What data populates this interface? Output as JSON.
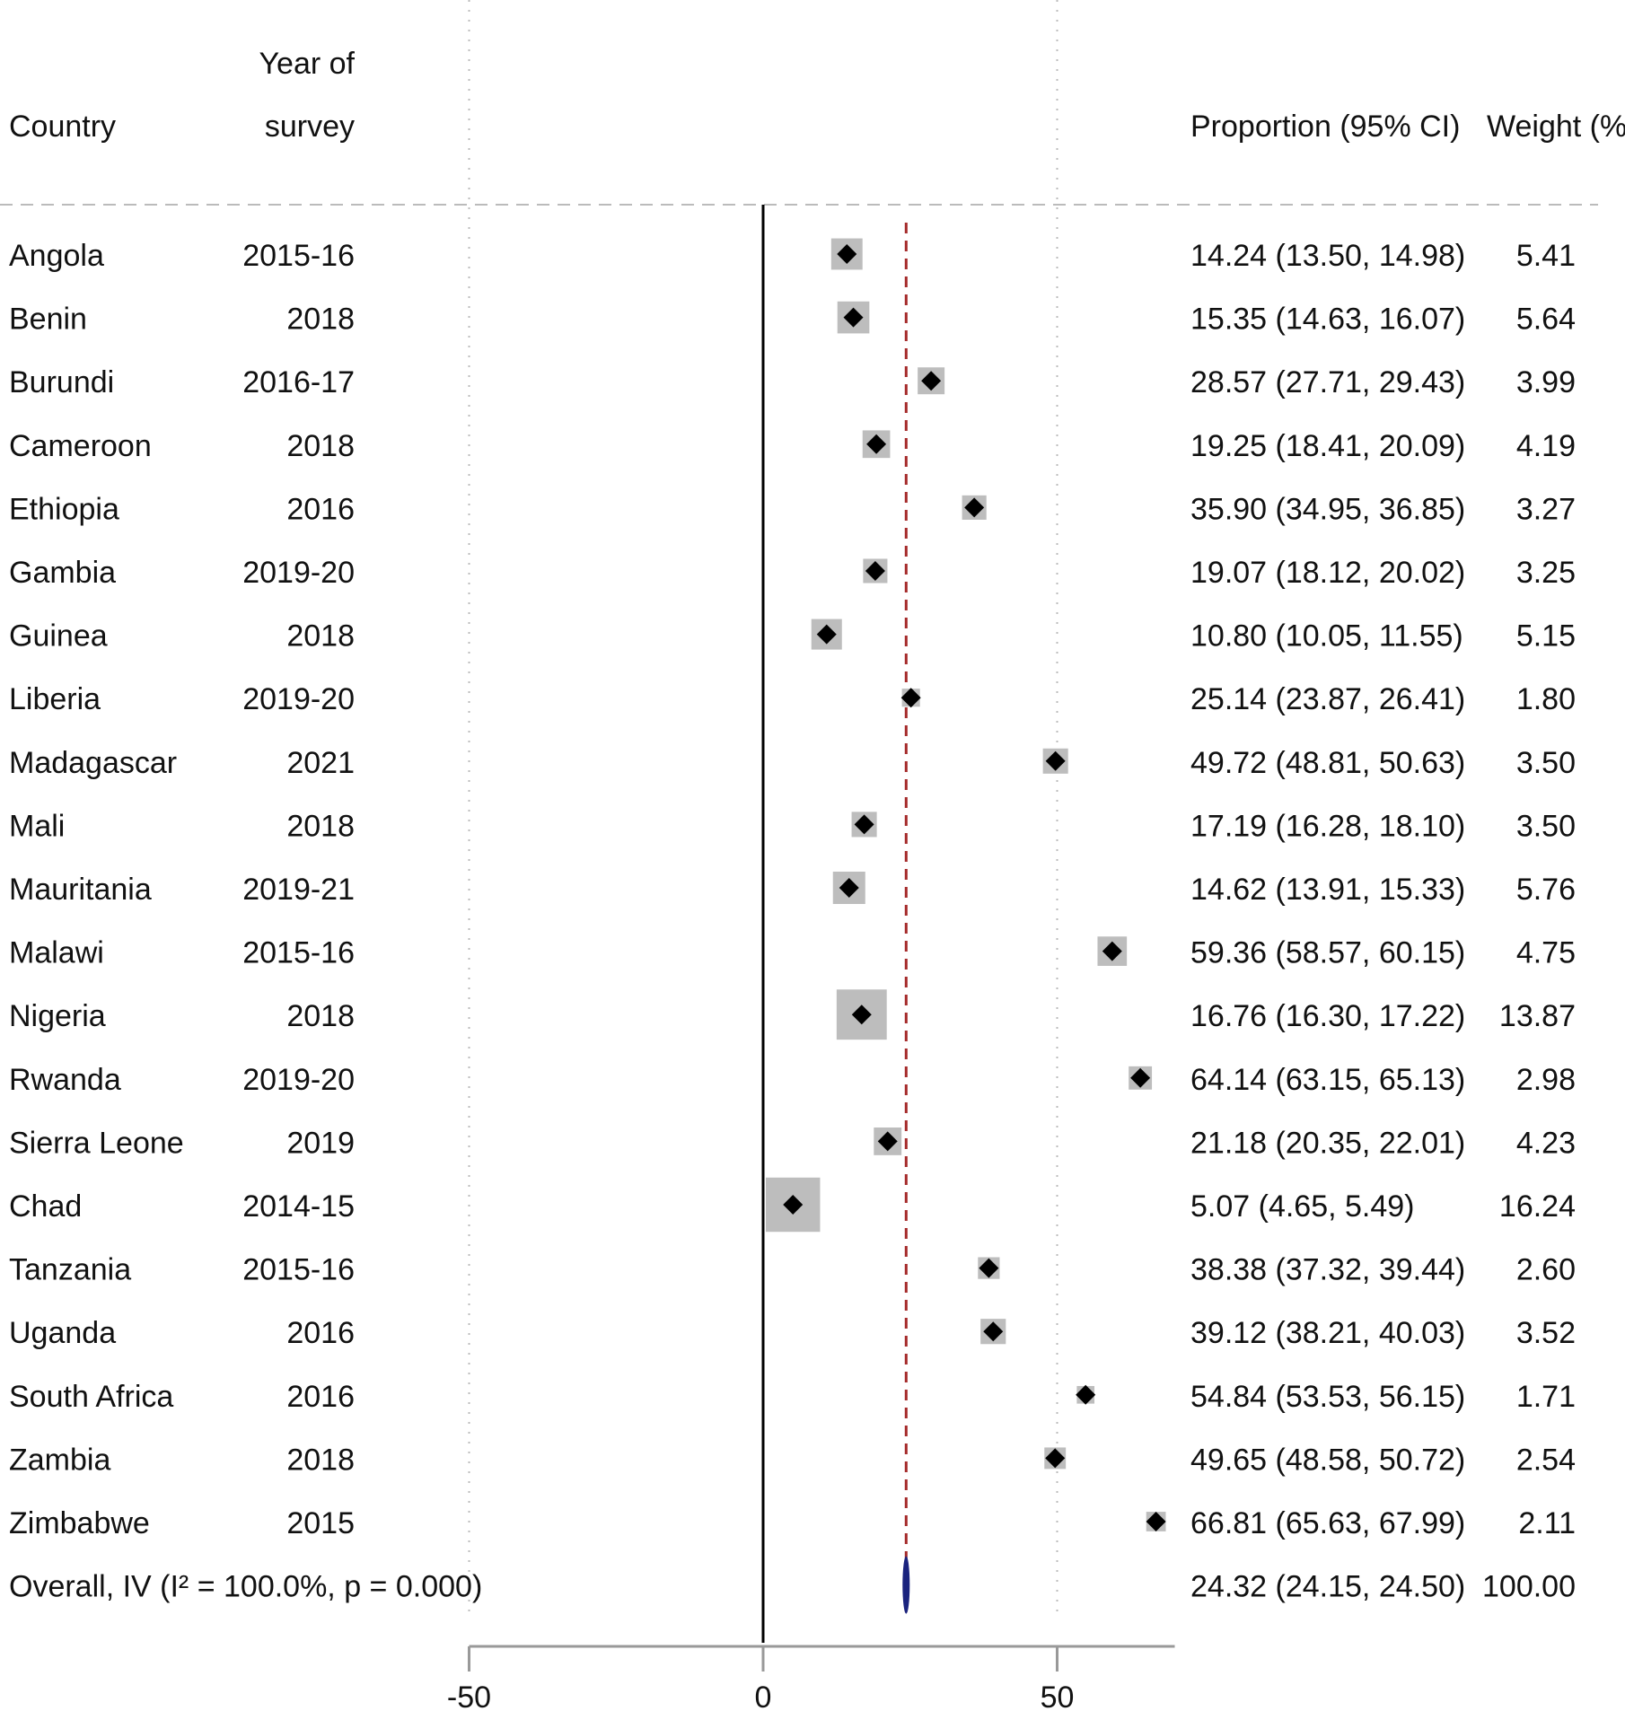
{
  "headers": {
    "country": "Country",
    "year_line1": "Year of",
    "year_line2": "survey",
    "proportion": "Proportion (95% CI)",
    "weight": "Weight (%)"
  },
  "colors": {
    "box": "#bdbdbd",
    "point": "#000000",
    "reference_line": "#a52a2a",
    "overall_marker": "#1a237e",
    "grid": "#bbbbbb",
    "axis": "#999999"
  },
  "chart_data": {
    "type": "forest",
    "xlim": [
      -50,
      70
    ],
    "x_ticks": [
      "-50",
      "0",
      "50"
    ],
    "x_tick_values": [
      -50,
      0,
      50
    ],
    "null_line": 0,
    "pooled_estimate_line": 24.32,
    "rows": [
      {
        "country": "Angola",
        "year": "2015-16",
        "est": 14.24,
        "lo": 13.5,
        "hi": 14.98,
        "weight": 5.41,
        "ci_text": "14.24 (13.50, 14.98)",
        "weight_text": "5.41"
      },
      {
        "country": "Benin",
        "year": "2018",
        "est": 15.35,
        "lo": 14.63,
        "hi": 16.07,
        "weight": 5.64,
        "ci_text": "15.35 (14.63, 16.07)",
        "weight_text": "5.64"
      },
      {
        "country": "Burundi",
        "year": "2016-17",
        "est": 28.57,
        "lo": 27.71,
        "hi": 29.43,
        "weight": 3.99,
        "ci_text": "28.57 (27.71, 29.43)",
        "weight_text": "3.99"
      },
      {
        "country": "Cameroon",
        "year": "2018",
        "est": 19.25,
        "lo": 18.41,
        "hi": 20.09,
        "weight": 4.19,
        "ci_text": "19.25 (18.41, 20.09)",
        "weight_text": "4.19"
      },
      {
        "country": "Ethiopia",
        "year": "2016",
        "est": 35.9,
        "lo": 34.95,
        "hi": 36.85,
        "weight": 3.27,
        "ci_text": "35.90 (34.95, 36.85)",
        "weight_text": "3.27"
      },
      {
        "country": "Gambia",
        "year": "2019-20",
        "est": 19.07,
        "lo": 18.12,
        "hi": 20.02,
        "weight": 3.25,
        "ci_text": "19.07 (18.12, 20.02)",
        "weight_text": "3.25"
      },
      {
        "country": "Guinea",
        "year": "2018",
        "est": 10.8,
        "lo": 10.05,
        "hi": 11.55,
        "weight": 5.15,
        "ci_text": "10.80 (10.05, 11.55)",
        "weight_text": "5.15"
      },
      {
        "country": "Liberia",
        "year": "2019-20",
        "est": 25.14,
        "lo": 23.87,
        "hi": 26.41,
        "weight": 1.8,
        "ci_text": "25.14 (23.87, 26.41)",
        "weight_text": "1.80"
      },
      {
        "country": "Madagascar",
        "year": "2021",
        "est": 49.72,
        "lo": 48.81,
        "hi": 50.63,
        "weight": 3.5,
        "ci_text": "49.72 (48.81, 50.63)",
        "weight_text": "3.50"
      },
      {
        "country": "Mali",
        "year": "2018",
        "est": 17.19,
        "lo": 16.28,
        "hi": 18.1,
        "weight": 3.5,
        "ci_text": "17.19 (16.28, 18.10)",
        "weight_text": "3.50"
      },
      {
        "country": "Mauritania",
        "year": "2019-21",
        "est": 14.62,
        "lo": 13.91,
        "hi": 15.33,
        "weight": 5.76,
        "ci_text": "14.62 (13.91, 15.33)",
        "weight_text": "5.76"
      },
      {
        "country": "Malawi",
        "year": "2015-16",
        "est": 59.36,
        "lo": 58.57,
        "hi": 60.15,
        "weight": 4.75,
        "ci_text": "59.36 (58.57, 60.15)",
        "weight_text": "4.75"
      },
      {
        "country": "Nigeria",
        "year": "2018",
        "est": 16.76,
        "lo": 16.3,
        "hi": 17.22,
        "weight": 13.87,
        "ci_text": "16.76 (16.30, 17.22)",
        "weight_text": "13.87"
      },
      {
        "country": "Rwanda",
        "year": "2019-20",
        "est": 64.14,
        "lo": 63.15,
        "hi": 65.13,
        "weight": 2.98,
        "ci_text": "64.14 (63.15, 65.13)",
        "weight_text": "2.98"
      },
      {
        "country": "Sierra Leone",
        "year": "2019",
        "est": 21.18,
        "lo": 20.35,
        "hi": 22.01,
        "weight": 4.23,
        "ci_text": "21.18 (20.35, 22.01)",
        "weight_text": "4.23"
      },
      {
        "country": "Chad",
        "year": "2014-15",
        "est": 5.07,
        "lo": 4.65,
        "hi": 5.49,
        "weight": 16.24,
        "ci_text": "5.07 (4.65, 5.49)",
        "weight_text": "16.24"
      },
      {
        "country": "Tanzania",
        "year": "2015-16",
        "est": 38.38,
        "lo": 37.32,
        "hi": 39.44,
        "weight": 2.6,
        "ci_text": "38.38 (37.32, 39.44)",
        "weight_text": "2.60"
      },
      {
        "country": "Uganda",
        "year": "2016",
        "est": 39.12,
        "lo": 38.21,
        "hi": 40.03,
        "weight": 3.52,
        "ci_text": "39.12 (38.21, 40.03)",
        "weight_text": "3.52"
      },
      {
        "country": "South Africa",
        "year": "2016",
        "est": 54.84,
        "lo": 53.53,
        "hi": 56.15,
        "weight": 1.71,
        "ci_text": "54.84 (53.53, 56.15)",
        "weight_text": "1.71"
      },
      {
        "country": "Zambia",
        "year": "2018",
        "est": 49.65,
        "lo": 48.58,
        "hi": 50.72,
        "weight": 2.54,
        "ci_text": "49.65 (48.58, 50.72)",
        "weight_text": "2.54"
      },
      {
        "country": "Zimbabwe",
        "year": "2015",
        "est": 66.81,
        "lo": 65.63,
        "hi": 67.99,
        "weight": 2.11,
        "ci_text": "66.81 (65.63, 67.99)",
        "weight_text": "2.11"
      }
    ],
    "overall": {
      "label": "Overall, IV (I² = 100.0%, p = 0.000)",
      "est": 24.32,
      "lo": 24.15,
      "hi": 24.5,
      "weight": 100.0,
      "ci_text": "24.32 (24.15, 24.50)",
      "weight_text": "100.00"
    }
  }
}
